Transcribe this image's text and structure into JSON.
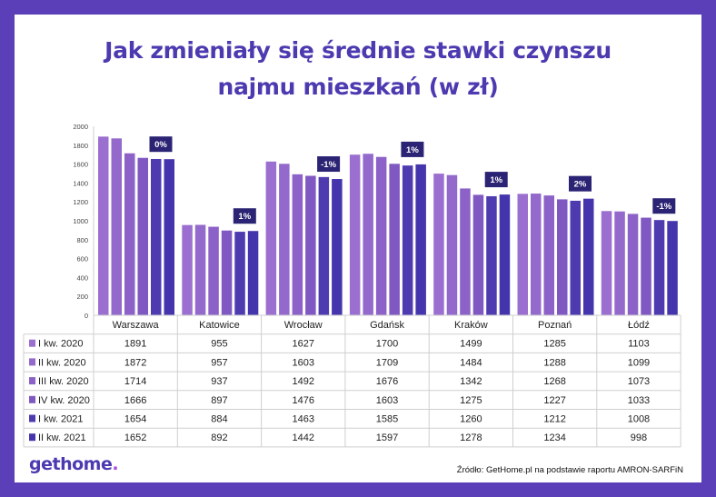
{
  "title_line1": "Jak zmieniały się średnie stawki czynszu",
  "title_line2": "najmu mieszkań (w zł)",
  "logo": {
    "part1": "get",
    "part2": "home",
    "dot": "."
  },
  "source": "Źródło: GetHome.pl na podstawie raportu AMRON-SARFiN",
  "colors": {
    "background": "#5b3fb8",
    "title": "#4b3ab0",
    "series": [
      "#9b6fd0",
      "#9469cc",
      "#8c62c8",
      "#8058c2",
      "#4e3bb0",
      "#4535ac"
    ],
    "badge": "#2b2373"
  },
  "chart_data": {
    "type": "bar",
    "categories": [
      "Warszawa",
      "Katowice",
      "Wrocław",
      "Gdańsk",
      "Kraków",
      "Poznań",
      "Łódź"
    ],
    "series": [
      {
        "name": "I kw. 2020",
        "values": [
          1891,
          955,
          1627,
          1700,
          1499,
          1285,
          1103
        ]
      },
      {
        "name": "II kw. 2020",
        "values": [
          1872,
          957,
          1603,
          1709,
          1484,
          1288,
          1099
        ]
      },
      {
        "name": "III kw. 2020",
        "values": [
          1714,
          937,
          1492,
          1676,
          1342,
          1268,
          1073
        ]
      },
      {
        "name": "IV kw. 2020",
        "values": [
          1666,
          897,
          1476,
          1603,
          1275,
          1227,
          1033
        ]
      },
      {
        "name": "I kw. 2021",
        "values": [
          1654,
          884,
          1463,
          1585,
          1260,
          1212,
          1008
        ]
      },
      {
        "name": "II kw. 2021",
        "values": [
          1652,
          892,
          1442,
          1597,
          1278,
          1234,
          998
        ]
      }
    ],
    "change_labels": [
      "0%",
      "1%",
      "-1%",
      "1%",
      "1%",
      "2%",
      "-1%"
    ],
    "ylim": [
      0,
      2000
    ],
    "yticks": [
      0,
      200,
      400,
      600,
      800,
      1000,
      1200,
      1400,
      1600,
      1800,
      2000
    ],
    "grid": false,
    "legend": "table-below"
  }
}
